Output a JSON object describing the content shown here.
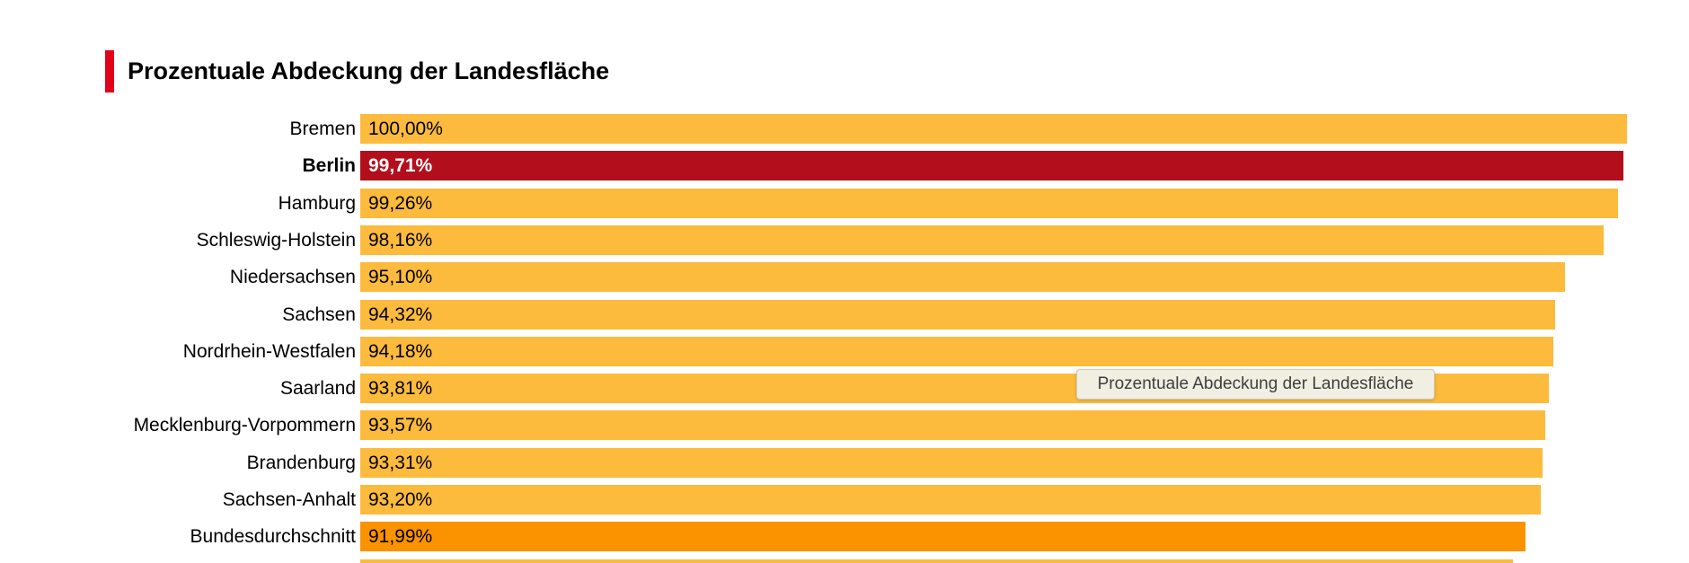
{
  "title": "Prozentuale Abdeckung der Landesfläche",
  "tooltip": {
    "text": "Prozentuale Abdeckung der Landesfläche"
  },
  "colors": {
    "accent_red": "#E3001B",
    "bar_amber": "#FCBB3C",
    "bar_highlight_red": "#B30E1B",
    "bar_average_orange": "#FB9200",
    "tooltip_bg": "#F0EFE1",
    "tooltip_border": "#CCCCB8",
    "tooltip_text": "#3E3E3E"
  },
  "chart_data": {
    "type": "bar",
    "orientation": "horizontal",
    "title": "Prozentuale Abdeckung der Landesfläche",
    "unit": "%",
    "xlim": [
      0,
      100
    ],
    "value_format": "German decimal comma, two decimals, suffixed %",
    "highlighted_category": "Berlin",
    "average_category": "Bundesdurchschnitt",
    "note_bottom_bar": "a thirteenth bar is cut off at the bottom edge, label and value not visible",
    "bars": [
      {
        "label": "Bremen",
        "value": 100.0,
        "display": "100,00%",
        "variant": "default"
      },
      {
        "label": "Berlin",
        "value": 99.71,
        "display": "99,71%",
        "variant": "highlight"
      },
      {
        "label": "Hamburg",
        "value": 99.26,
        "display": "99,26%",
        "variant": "default"
      },
      {
        "label": "Schleswig-Holstein",
        "value": 98.16,
        "display": "98,16%",
        "variant": "default"
      },
      {
        "label": "Niedersachsen",
        "value": 95.1,
        "display": "95,10%",
        "variant": "default"
      },
      {
        "label": "Sachsen",
        "value": 94.32,
        "display": "94,32%",
        "variant": "default"
      },
      {
        "label": "Nordrhein-Westfalen",
        "value": 94.18,
        "display": "94,18%",
        "variant": "default"
      },
      {
        "label": "Saarland",
        "value": 93.81,
        "display": "93,81%",
        "variant": "default"
      },
      {
        "label": "Mecklenburg-Vorpommern",
        "value": 93.57,
        "display": "93,57%",
        "variant": "default"
      },
      {
        "label": "Brandenburg",
        "value": 93.31,
        "display": "93,31%",
        "variant": "default"
      },
      {
        "label": "Sachsen-Anhalt",
        "value": 93.2,
        "display": "93,20%",
        "variant": "default"
      },
      {
        "label": "Bundesdurchschnitt",
        "value": 91.99,
        "display": "91,99%",
        "variant": "average"
      },
      {
        "label": "",
        "value": 91.0,
        "display": "",
        "variant": "partial-cutoff"
      }
    ]
  }
}
